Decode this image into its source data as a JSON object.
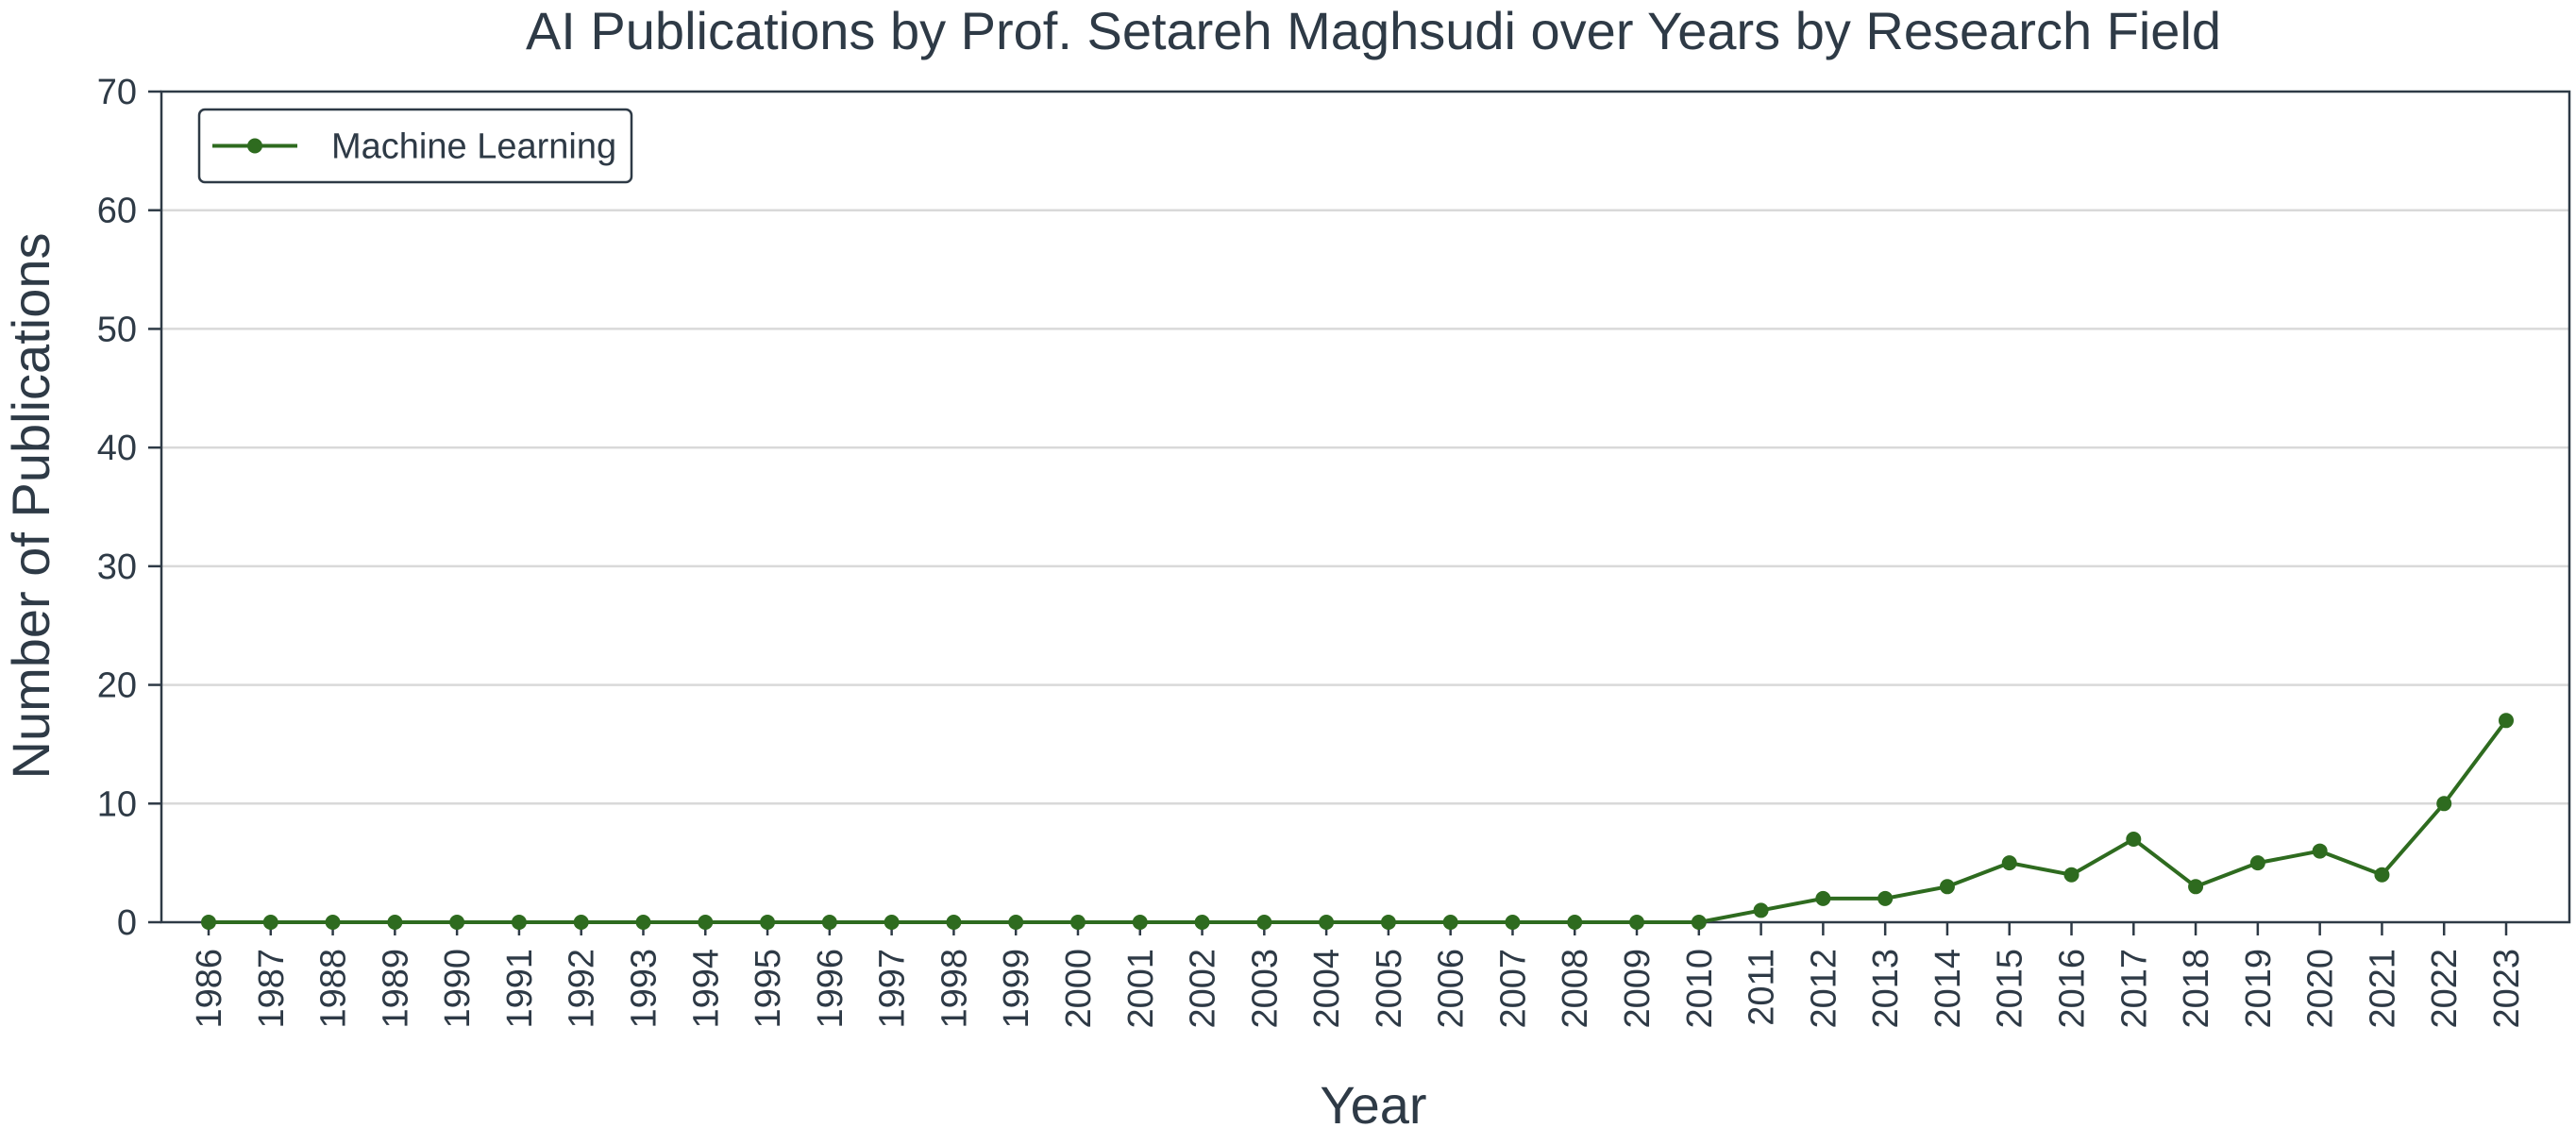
{
  "chart_data": {
    "type": "line",
    "title": "AI Publications by Prof. Setareh Maghsudi over Years by Research Field",
    "xlabel": "Year",
    "ylabel": "Number of Publications",
    "x": [
      "1986",
      "1987",
      "1988",
      "1989",
      "1990",
      "1991",
      "1992",
      "1993",
      "1994",
      "1995",
      "1996",
      "1997",
      "1998",
      "1999",
      "2000",
      "2001",
      "2002",
      "2003",
      "2004",
      "2005",
      "2006",
      "2007",
      "2008",
      "2009",
      "2010",
      "2011",
      "2012",
      "2013",
      "2014",
      "2015",
      "2016",
      "2017",
      "2018",
      "2019",
      "2020",
      "2021",
      "2022",
      "2023"
    ],
    "series": [
      {
        "name": "Machine Learning",
        "color": "#2e6b1f",
        "values": [
          0,
          0,
          0,
          0,
          0,
          0,
          0,
          0,
          0,
          0,
          0,
          0,
          0,
          0,
          0,
          0,
          0,
          0,
          0,
          0,
          0,
          0,
          0,
          0,
          0,
          1,
          2,
          2,
          3,
          5,
          4,
          7,
          3,
          5,
          6,
          4,
          10,
          17
        ]
      }
    ],
    "ylim": [
      0,
      70
    ],
    "yticks": [
      "0",
      "10",
      "20",
      "30",
      "40",
      "50",
      "60",
      "70"
    ],
    "grid": "horizontal",
    "legend_position": "top-left",
    "colors": {
      "axis": "#2e3a46",
      "grid": "#d9d9d9",
      "text": "#2e3a46"
    }
  }
}
